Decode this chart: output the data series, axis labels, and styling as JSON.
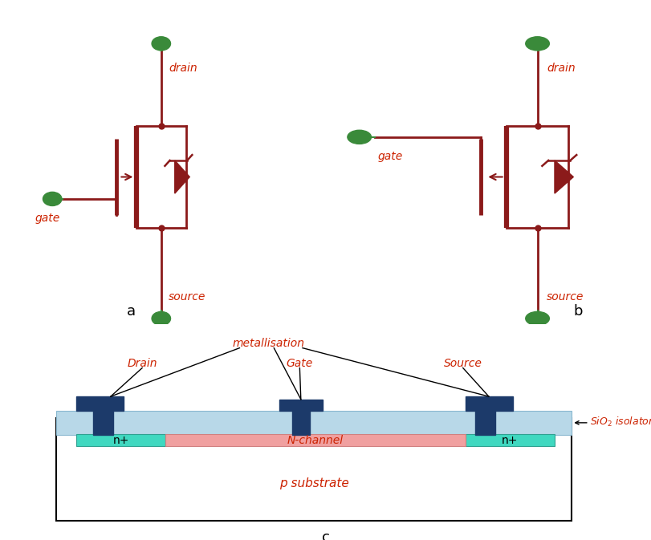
{
  "bg_color": "#ffffff",
  "mosfet_color": "#8B1A1A",
  "green_color": "#3A8A3A",
  "red_text_color": "#CC2200",
  "black_color": "#000000",
  "layer_sio2_color": "#B8D8E8",
  "layer_nplus_color": "#40D8C0",
  "layer_nchannel_color": "#F0A0A0",
  "layer_metal_color": "#1C3A6A",
  "label_a": "a",
  "label_b": "b",
  "label_c": "c"
}
